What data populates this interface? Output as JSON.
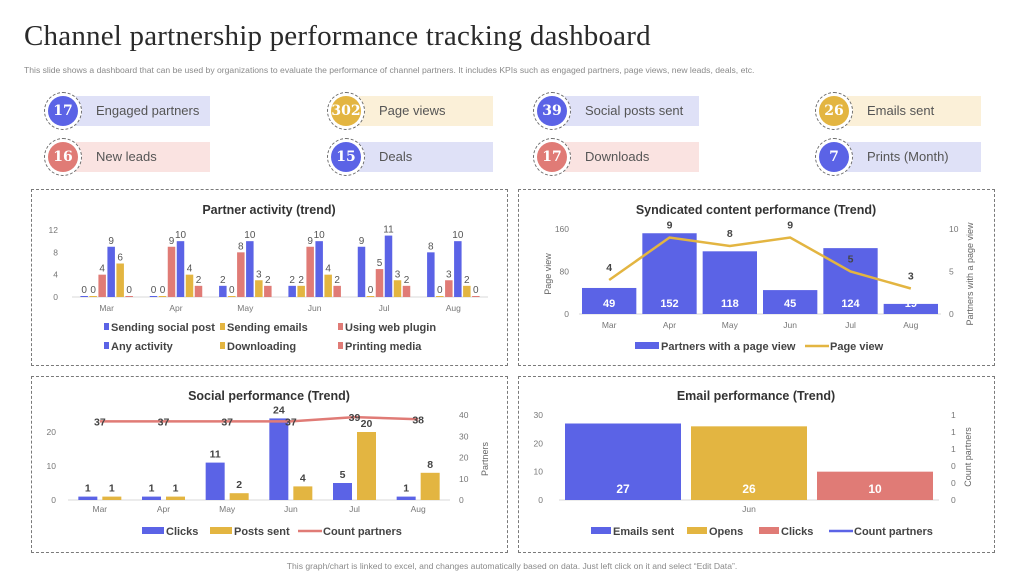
{
  "page": {
    "title": "Channel partnership performance tracking dashboard",
    "subtitle": "This slide shows a dashboard that can be used by organizations to evaluate the performance of channel partners. It includes KPIs such as engaged partners, page views, new leads, deals, etc.",
    "footer": "This graph/chart is linked to excel, and changes automatically based on data. Just left click on it and select “Edit Data”."
  },
  "colors": {
    "blue": "#5b63e6",
    "yellow": "#e3b541",
    "red": "#e07b76",
    "blue_bg": "#dfe1f7",
    "yellow_bg": "#fbf0d8",
    "red_bg": "#fae3e1"
  },
  "kpis": [
    {
      "value": "17",
      "label": "Engaged partners",
      "color": "blue"
    },
    {
      "value": "302",
      "label": "Page views",
      "color": "yellow"
    },
    {
      "value": "39",
      "label": "Social posts sent",
      "color": "blue"
    },
    {
      "value": "26",
      "label": "Emails sent",
      "color": "yellow"
    },
    {
      "value": "16",
      "label": "New leads",
      "color": "red"
    },
    {
      "value": "15",
      "label": "Deals",
      "color": "blue"
    },
    {
      "value": "17",
      "label": "Downloads",
      "color": "red"
    },
    {
      "value": "7",
      "label": "Prints (Month)",
      "color": "blue"
    }
  ],
  "chart_data": [
    {
      "id": "partner-activity",
      "type": "bar",
      "title": "Partner activity (trend)",
      "categories": [
        "Mar",
        "Apr",
        "May",
        "Jun",
        "Jul",
        "Aug"
      ],
      "ylim": [
        0,
        12
      ],
      "yticks": [
        0,
        4,
        8,
        12
      ],
      "grid": false,
      "legend_position": "bottom",
      "series": [
        {
          "name": "Sending social post",
          "color": "blue",
          "values": [
            0,
            0,
            2,
            2,
            9,
            8
          ]
        },
        {
          "name": "Sending emails",
          "color": "yellow",
          "values": [
            0,
            0,
            0,
            2,
            0,
            0
          ]
        },
        {
          "name": "Using web plugin",
          "color": "red",
          "values": [
            4,
            9,
            8,
            9,
            5,
            3
          ]
        },
        {
          "name": "Any activity",
          "color": "blue",
          "values": [
            9,
            10,
            10,
            10,
            11,
            10
          ]
        },
        {
          "name": "Downloading",
          "color": "yellow",
          "values": [
            6,
            4,
            3,
            4,
            3,
            2
          ]
        },
        {
          "name": "Printing media",
          "color": "red",
          "values": [
            0,
            2,
            2,
            2,
            2,
            0
          ]
        }
      ]
    },
    {
      "id": "syndicated-content",
      "type": "bar",
      "title": "Syndicated content performance (Trend)",
      "categories": [
        "Mar",
        "Apr",
        "May",
        "Jun",
        "Jul",
        "Aug"
      ],
      "ylabel": "Page view",
      "y2label": "Partners with a page view",
      "ylim": [
        0,
        160
      ],
      "yticks": [
        0,
        80,
        160
      ],
      "y2lim": [
        0,
        10
      ],
      "y2ticks": [
        0,
        5,
        10
      ],
      "legend_position": "bottom",
      "series": [
        {
          "name": "Partners with a page view",
          "kind": "bar",
          "axis": "left",
          "color": "blue",
          "values": [
            49,
            152,
            118,
            45,
            124,
            19
          ]
        },
        {
          "name": "Page view",
          "kind": "line",
          "axis": "right",
          "color": "yellow",
          "values": [
            4,
            9,
            8,
            9,
            5,
            3
          ]
        }
      ]
    },
    {
      "id": "social-performance",
      "type": "bar",
      "title": "Social performance (Trend)",
      "categories": [
        "Mar",
        "Apr",
        "May",
        "Jun",
        "Jul",
        "Aug"
      ],
      "ylim": [
        0,
        25
      ],
      "yticks": [
        0,
        10,
        20
      ],
      "y2label": "Partners",
      "y2lim": [
        0,
        40
      ],
      "y2ticks": [
        0,
        10,
        20,
        30,
        40
      ],
      "legend_position": "bottom",
      "series": [
        {
          "name": "Clicks",
          "kind": "bar",
          "axis": "left",
          "color": "blue",
          "values": [
            1,
            1,
            11,
            24,
            5,
            1
          ]
        },
        {
          "name": "Posts sent",
          "kind": "bar",
          "axis": "left",
          "color": "yellow",
          "values": [
            1,
            1,
            2,
            4,
            20,
            8
          ]
        },
        {
          "name": "Count partners",
          "kind": "line",
          "axis": "right",
          "color": "red",
          "values": [
            37,
            37,
            37,
            37,
            39,
            38
          ]
        }
      ]
    },
    {
      "id": "email-performance",
      "type": "bar",
      "title": "Email performance (Trend)",
      "categories": [
        "Jun"
      ],
      "ylim": [
        0,
        30
      ],
      "yticks": [
        0,
        10,
        20,
        30
      ],
      "y2label": "Count partners",
      "y2ticks": [
        "0",
        "0",
        "0",
        "1",
        "1",
        "1"
      ],
      "legend_position": "bottom",
      "series": [
        {
          "name": "Emails sent",
          "kind": "bar",
          "color": "blue",
          "values": [
            27
          ]
        },
        {
          "name": "Opens",
          "kind": "bar",
          "color": "yellow",
          "values": [
            26
          ]
        },
        {
          "name": "Clicks",
          "kind": "bar",
          "color": "red",
          "values": [
            10
          ]
        },
        {
          "name": "Count partners",
          "kind": "line",
          "color": "blue",
          "values": []
        }
      ]
    }
  ]
}
